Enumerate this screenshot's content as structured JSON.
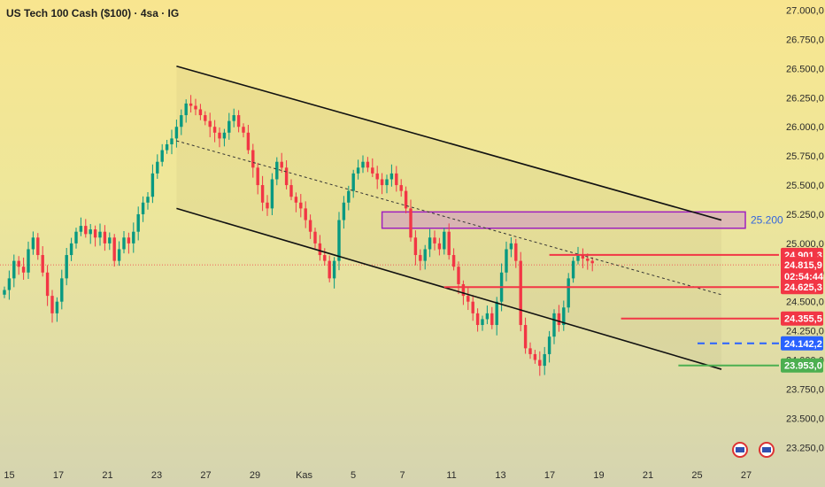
{
  "header": {
    "title": "US Tech 100 Cash ($100) · 4sa · IG"
  },
  "chart_data": {
    "type": "candlestick",
    "title": "US Tech 100 Cash ($100) · 4sa · IG",
    "y_axis": {
      "range": [
        23100,
        27050
      ],
      "tick_values": [
        23250,
        23500,
        23750,
        24000,
        24250,
        24500,
        24750,
        25000,
        25250,
        25500,
        25750,
        26000,
        26250,
        26500,
        26750,
        27000
      ],
      "tick_labels": [
        "23.250,0",
        "23.500,0",
        "23.750,0",
        "24.000,0",
        "24.250,0",
        "24.500,0",
        "24.750,0",
        "25.000,0",
        "25.250,0",
        "25.500,0",
        "25.750,0",
        "26.000,0",
        "26.250,0",
        "26.500,0",
        "26.750,0",
        "27.000,0"
      ]
    },
    "x_axis": {
      "range": [
        0,
        136
      ],
      "ticks": [
        {
          "label": "15",
          "index": 1
        },
        {
          "label": "17",
          "index": 11
        },
        {
          "label": "21",
          "index": 21
        },
        {
          "label": "23",
          "index": 31
        },
        {
          "label": "27",
          "index": 41
        },
        {
          "label": "29",
          "index": 51
        },
        {
          "label": "Kas",
          "index": 61
        },
        {
          "label": "5",
          "index": 71
        },
        {
          "label": "7",
          "index": 81
        },
        {
          "label": "11",
          "index": 91
        },
        {
          "label": "13",
          "index": 101
        },
        {
          "label": "17",
          "index": 111
        },
        {
          "label": "19",
          "index": 121
        },
        {
          "label": "21",
          "index": 131
        },
        {
          "label": "25",
          "index": 141
        },
        {
          "label": "27",
          "index": 151
        }
      ]
    },
    "closes": [
      24600,
      24700,
      24850,
      24800,
      24750,
      24950,
      25050,
      24900,
      24750,
      24550,
      24400,
      24500,
      24700,
      24900,
      25000,
      25100,
      25150,
      25080,
      25120,
      25050,
      25100,
      25000,
      25050,
      24850,
      24950,
      25050,
      25000,
      25100,
      25250,
      25350,
      25400,
      25600,
      25700,
      25800,
      25850,
      25900,
      26000,
      26100,
      26200,
      26180,
      26150,
      26100,
      26050,
      26000,
      25950,
      25900,
      25950,
      26050,
      26100,
      26000,
      25950,
      25800,
      25650,
      25500,
      25350,
      25300,
      25550,
      25700,
      25650,
      25500,
      25400,
      25350,
      25300,
      25200,
      25100,
      25000,
      24900,
      24850,
      24700,
      24850,
      25200,
      25350,
      25450,
      25600,
      25650,
      25700,
      25650,
      25600,
      25550,
      25500,
      25550,
      25600,
      25500,
      25450,
      25300,
      25050,
      24900,
      24850,
      24950,
      25050,
      25000,
      24950,
      25100,
      24900,
      24800,
      24650,
      24550,
      24500,
      24400,
      24300,
      24350,
      24400,
      24300,
      24500,
      24750,
      24950,
      25000,
      24850,
      24300,
      24100,
      24050,
      24000,
      23950,
      24050,
      24200,
      24400,
      24300,
      24450,
      24700,
      24850,
      24900,
      24870,
      24850,
      24830
    ],
    "first_close_index": 0,
    "trend_channel": {
      "upper": [
        [
          36,
          26520
        ],
        [
          150,
          25200
        ]
      ],
      "middle": [
        [
          36,
          25880
        ],
        [
          150,
          24560
        ]
      ],
      "lower": [
        [
          36,
          25300
        ],
        [
          150,
          23920
        ]
      ]
    },
    "resistance_zone": {
      "from_index": 79,
      "to_index": 155,
      "low": 25130,
      "high": 25270,
      "label": "25.200"
    },
    "levels": [
      {
        "value": 24901.3,
        "label": "24.901,3",
        "color": "#f23645",
        "from_index": 114
      },
      {
        "value": 24625.3,
        "label": "24.625,3",
        "color": "#f23645",
        "from_index": 92
      },
      {
        "value": 24355.5,
        "label": "24.355,5",
        "color": "#f23645",
        "from_index": 129
      },
      {
        "value": 24142.2,
        "label": "24.142,2",
        "color": "#2962ff",
        "from_index": 145,
        "dashed": true
      },
      {
        "value": 23953.0,
        "label": "23.953,0",
        "color": "#4caf50",
        "from_index": 141
      }
    ],
    "current_price": {
      "value": 24815.9,
      "label": "24.815,9",
      "countdown": "02:54:44",
      "color": "#f23645"
    }
  }
}
